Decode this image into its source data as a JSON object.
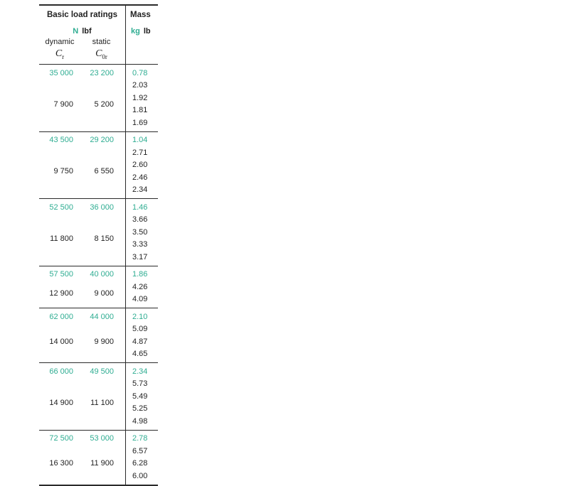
{
  "colors": {
    "accent": "#2FAD92",
    "ink": "#1f1f1f"
  },
  "table": {
    "header": {
      "load_ratings_title": "Basic load ratings",
      "mass_title": "Mass",
      "unit_n": "N",
      "unit_lbf": "lbf",
      "unit_kg": "kg",
      "unit_lb": "lb",
      "dynamic_label": "dynamic",
      "static_label": "static",
      "dynamic_symbol_base": "C",
      "dynamic_symbol_sub": "r",
      "static_symbol_base": "C",
      "static_symbol_sub": "0r"
    },
    "blocks": [
      {
        "dynamic_n": "35 000",
        "static_n": "23 200",
        "dynamic_lbf": "7 900",
        "static_lbf": "5 200",
        "mass_kg": "0.78",
        "mass_lb": [
          "2.03",
          "1.92",
          "1.81",
          "1.69"
        ]
      },
      {
        "dynamic_n": "43 500",
        "static_n": "29 200",
        "dynamic_lbf": "9 750",
        "static_lbf": "6 550",
        "mass_kg": "1.04",
        "mass_lb": [
          "2.71",
          "2.60",
          "2.46",
          "2.34"
        ]
      },
      {
        "dynamic_n": "52 500",
        "static_n": "36 000",
        "dynamic_lbf": "11 800",
        "static_lbf": "8 150",
        "mass_kg": "1.46",
        "mass_lb": [
          "3.66",
          "3.50",
          "3.33",
          "3.17"
        ]
      },
      {
        "dynamic_n": "57 500",
        "static_n": "40 000",
        "dynamic_lbf": "12 900",
        "static_lbf": "9 000",
        "mass_kg": "1.86",
        "mass_lb": [
          "4.26",
          "4.09"
        ]
      },
      {
        "dynamic_n": "62 000",
        "static_n": "44 000",
        "dynamic_lbf": "14 000",
        "static_lbf": "9 900",
        "mass_kg": "2.10",
        "mass_lb": [
          "5.09",
          "4.87",
          "4.65"
        ]
      },
      {
        "dynamic_n": "66 000",
        "static_n": "49 500",
        "dynamic_lbf": "14 900",
        "static_lbf": "11 100",
        "mass_kg": "2.34",
        "mass_lb": [
          "5.73",
          "5.49",
          "5.25",
          "4.98"
        ]
      },
      {
        "dynamic_n": "72 500",
        "static_n": "53 000",
        "dynamic_lbf": "16 300",
        "static_lbf": "11 900",
        "mass_kg": "2.78",
        "mass_lb": [
          "6.57",
          "6.28",
          "6.00"
        ]
      }
    ]
  }
}
